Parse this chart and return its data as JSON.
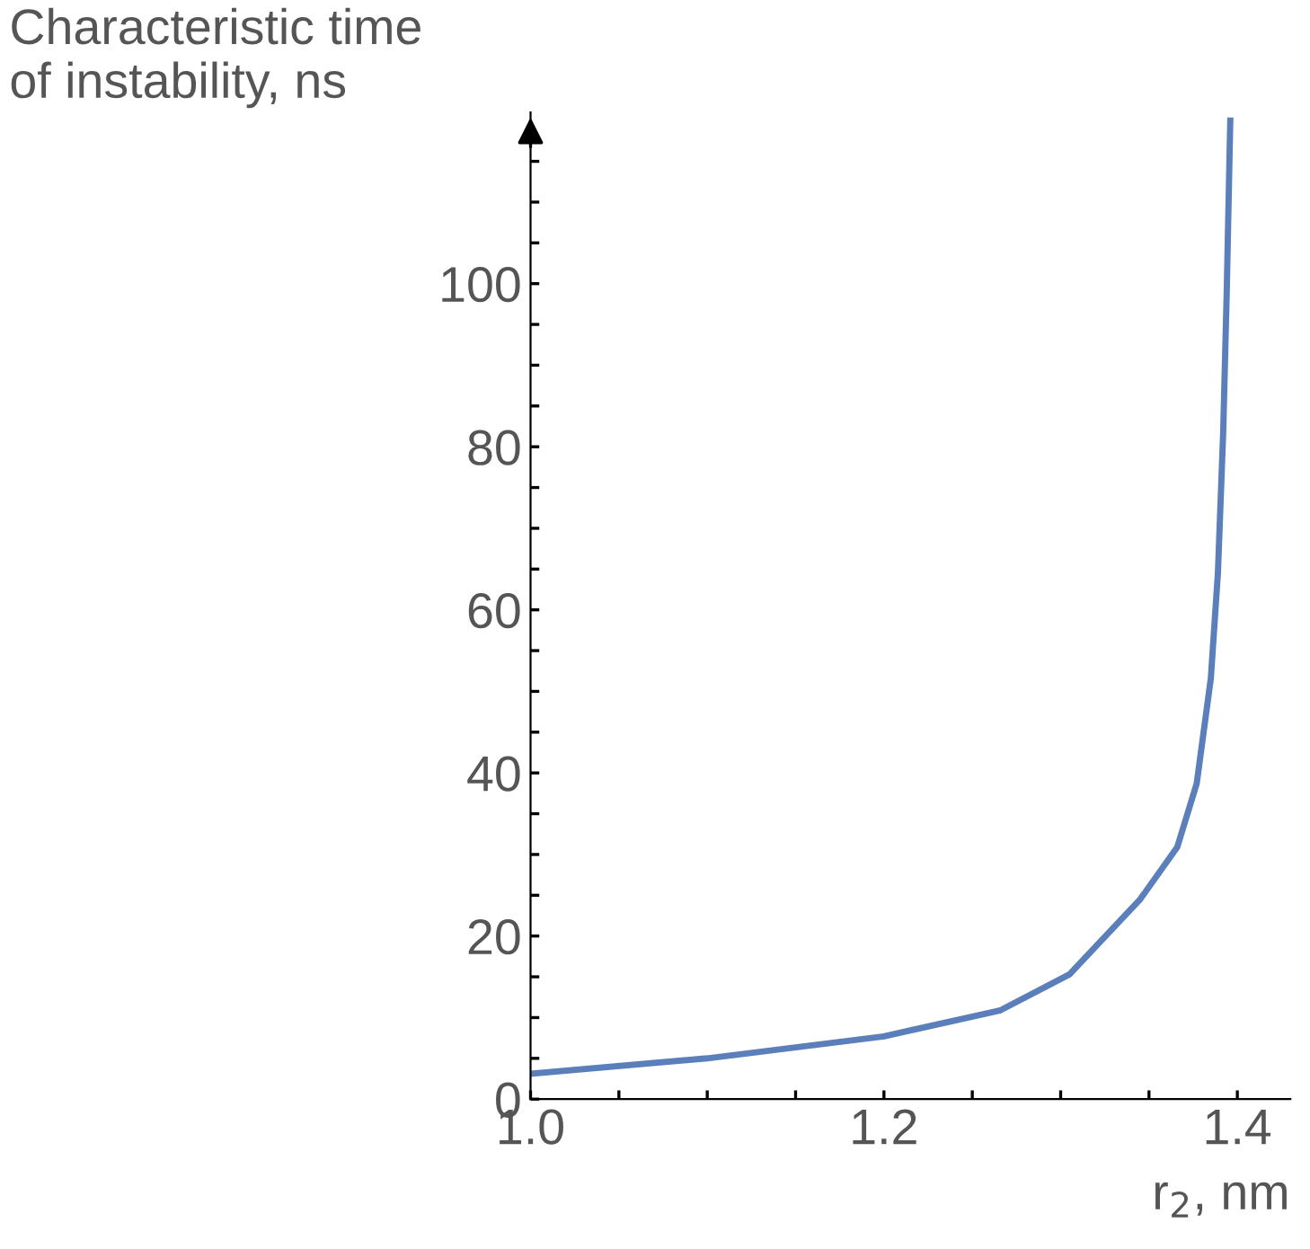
{
  "chart_data": {
    "type": "line",
    "ylabel": "Characteristic time\nof instability, ns",
    "xlabel": "r$_{2}$, nm",
    "x": [
      1.0,
      1.1,
      1.2,
      1.266,
      1.305,
      1.345,
      1.366,
      1.377,
      1.385,
      1.389,
      1.392,
      1.394,
      1.396
    ],
    "series": [
      {
        "color": "#5b7fba",
        "values": [
          3.1,
          5.0,
          7.7,
          10.9,
          15.3,
          24.5,
          30.9,
          38.7,
          51.6,
          64.5,
          81.8,
          99,
          120
        ]
      }
    ],
    "xlim": [
      1.0,
      1.43
    ],
    "ylim": [
      0,
      121
    ],
    "xticks": [
      {
        "value": 1.0,
        "label": "1.0"
      },
      {
        "value": 1.05,
        "label": null
      },
      {
        "value": 1.1,
        "label": null
      },
      {
        "value": 1.15,
        "label": null
      },
      {
        "value": 1.2,
        "label": "1.2"
      },
      {
        "value": 1.25,
        "label": null
      },
      {
        "value": 1.3,
        "label": null
      },
      {
        "value": 1.35,
        "label": null
      },
      {
        "value": 1.4,
        "label": "1.4"
      }
    ],
    "yticks": [
      0,
      {
        "value": 5,
        "label": null
      },
      {
        "value": 10,
        "label": null
      },
      {
        "value": 15,
        "label": null
      },
      20,
      {
        "value": 25,
        "label": null
      },
      {
        "value": 30,
        "label": null
      },
      {
        "value": 35,
        "label": null
      },
      40,
      {
        "value": 45,
        "label": null
      },
      {
        "value": 50,
        "label": null
      },
      {
        "value": 55,
        "label": null
      },
      60,
      {
        "value": 65,
        "label": null
      },
      {
        "value": 70,
        "label": null
      },
      {
        "value": 75,
        "label": null
      },
      80,
      {
        "value": 85,
        "label": null
      },
      {
        "value": 90,
        "label": null
      },
      {
        "value": 95,
        "label": null
      },
      100,
      {
        "value": 105,
        "label": null
      },
      {
        "value": 110,
        "label": null
      },
      {
        "value": 115,
        "label": null
      }
    ],
    "grid": false,
    "marker": "none",
    "line_style": "solid"
  }
}
